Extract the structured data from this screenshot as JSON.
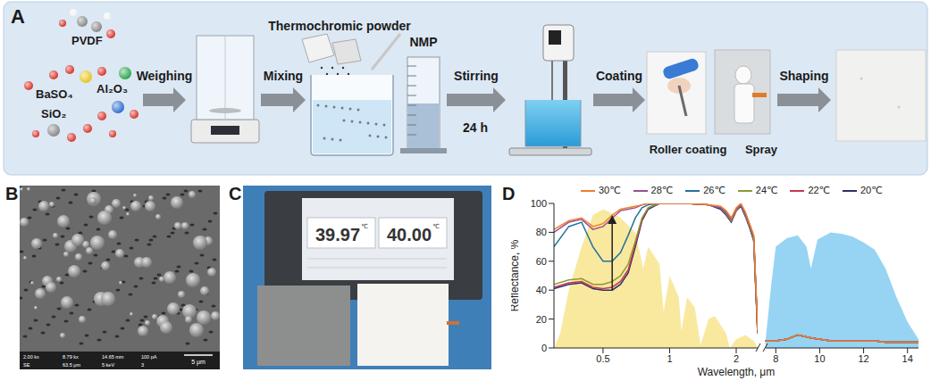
{
  "panels": {
    "A": {
      "label": "A",
      "materials": [
        "PVDF",
        "BaSO₄",
        "SiO₂",
        "Al₂O₃"
      ],
      "steps": [
        "Weighing",
        "Mixing",
        "Stirring",
        "Coating",
        "Shaping"
      ],
      "powder": "Thermochromic powder",
      "solvent": "NMP",
      "stirring_time": "24 h",
      "methods": [
        "Roller coating",
        "Spray"
      ]
    },
    "B": {
      "label": "B",
      "scale_bar": "5 μm",
      "info": [
        "2.00 kx",
        "8.79 kx",
        "14.65 mm",
        "100 pA",
        "SE",
        "63.5 μm",
        "5 keV",
        "3"
      ]
    },
    "C": {
      "label": "C",
      "readings": [
        {
          "value": 39.97,
          "label": "39.97"
        },
        {
          "value": 40,
          "label": "40.00"
        }
      ],
      "unit": "℃"
    }
  },
  "chart_data": {
    "label": "D",
    "type": "line",
    "xlabel": "Wavelength, μm",
    "ylabel": "Reflectance, %",
    "ylim": [
      0,
      100
    ],
    "yticks": [
      0,
      20,
      40,
      60,
      80,
      100
    ],
    "grid": false,
    "legend": "top",
    "segments": [
      {
        "xlim": [
          0.3,
          2.5
        ],
        "xticks": [
          0.5,
          1,
          2
        ],
        "log": "x"
      },
      {
        "xlim": [
          7.5,
          14.5
        ],
        "xticks": [
          8,
          10,
          12,
          14
        ]
      }
    ],
    "x": [
      0.3,
      0.35,
      0.4,
      0.45,
      0.5,
      0.55,
      0.6,
      0.65,
      0.7,
      0.75,
      0.8,
      0.9,
      1,
      1.2,
      1.5,
      1.7,
      1.8,
      1.9,
      2,
      2.1,
      2.2,
      2.3,
      2.4,
      2.5,
      7.5,
      8,
      8.5,
      9,
      9.3,
      9.6,
      10,
      10.5,
      11,
      11.5,
      12,
      12.5,
      13,
      13.5,
      14,
      14.5
    ],
    "series": [
      {
        "name": "30℃",
        "color": "#f07f2a",
        "values": [
          82,
          88,
          90,
          84,
          86,
          92,
          96,
          97,
          98,
          99,
          100,
          100,
          100,
          100,
          99,
          98,
          95,
          90,
          97,
          100,
          94,
          86,
          78,
          12,
          5,
          5,
          6,
          9,
          8,
          7,
          6,
          5,
          5,
          5,
          5,
          5,
          4,
          4,
          4,
          4
        ]
      },
      {
        "name": "28℃",
        "color": "#9b4f96",
        "values": [
          80,
          87,
          89,
          82,
          84,
          90,
          95,
          96,
          97,
          99,
          100,
          100,
          100,
          100,
          99,
          97,
          94,
          89,
          96,
          99,
          93,
          85,
          77,
          11,
          5,
          5,
          6,
          9,
          8,
          7,
          6,
          5,
          5,
          5,
          5,
          5,
          4,
          4,
          4,
          4
        ]
      },
      {
        "name": "26℃",
        "color": "#23709e",
        "values": [
          70,
          84,
          87,
          70,
          60,
          60,
          66,
          78,
          90,
          97,
          99,
          100,
          100,
          100,
          99,
          97,
          94,
          89,
          96,
          99,
          93,
          85,
          76,
          11,
          5,
          5,
          6,
          9,
          8,
          7,
          6,
          5,
          5,
          5,
          5,
          5,
          4,
          4,
          4,
          4
        ]
      },
      {
        "name": "24℃",
        "color": "#8c9a35",
        "values": [
          44,
          47,
          48,
          44,
          44,
          46,
          50,
          58,
          74,
          90,
          97,
          100,
          100,
          100,
          99,
          97,
          93,
          88,
          95,
          99,
          92,
          84,
          75,
          10,
          5,
          5,
          6,
          9,
          8,
          7,
          6,
          5,
          5,
          5,
          5,
          5,
          4,
          4,
          4,
          4
        ]
      },
      {
        "name": "22℃",
        "color": "#c8364f",
        "values": [
          42,
          45,
          46,
          42,
          41,
          42,
          46,
          54,
          72,
          89,
          97,
          100,
          100,
          100,
          99,
          97,
          93,
          88,
          95,
          99,
          92,
          84,
          75,
          10,
          5,
          5,
          6,
          9,
          8,
          7,
          6,
          5,
          5,
          5,
          5,
          5,
          4,
          4,
          4,
          4
        ]
      },
      {
        "name": "20℃",
        "color": "#2d2f6e",
        "values": [
          41,
          44,
          45,
          41,
          40,
          40,
          44,
          52,
          70,
          88,
          96,
          100,
          100,
          100,
          99,
          96,
          92,
          87,
          95,
          98,
          91,
          83,
          74,
          10,
          5,
          5,
          6,
          9,
          8,
          7,
          6,
          5,
          5,
          5,
          5,
          5,
          4,
          4,
          4,
          4
        ]
      }
    ],
    "fills": [
      {
        "color": "#f6e27f",
        "x": [
          0.3,
          0.32,
          0.35,
          0.4,
          0.45,
          0.5,
          0.55,
          0.6,
          0.7,
          0.76,
          0.8,
          0.9,
          0.94,
          1,
          1.1,
          1.13,
          1.2,
          1.3,
          1.38,
          1.5,
          1.6,
          1.8,
          1.87,
          2,
          2.2,
          2.4,
          2.5
        ],
        "values": [
          0,
          10,
          40,
          70,
          92,
          96,
          93,
          90,
          80,
          55,
          70,
          58,
          25,
          50,
          35,
          12,
          35,
          28,
          2,
          20,
          22,
          10,
          0,
          6,
          9,
          5,
          0
        ]
      },
      {
        "color": "#74c6ef",
        "x": [
          7.5,
          7.8,
          8,
          8.5,
          9,
          9.4,
          9.6,
          9.9,
          10.5,
          11,
          11.5,
          12,
          12.5,
          13,
          13.5,
          14,
          14.5
        ],
        "values": [
          0,
          45,
          70,
          76,
          78,
          70,
          55,
          75,
          80,
          79,
          77,
          73,
          68,
          55,
          35,
          18,
          6
        ]
      }
    ]
  }
}
